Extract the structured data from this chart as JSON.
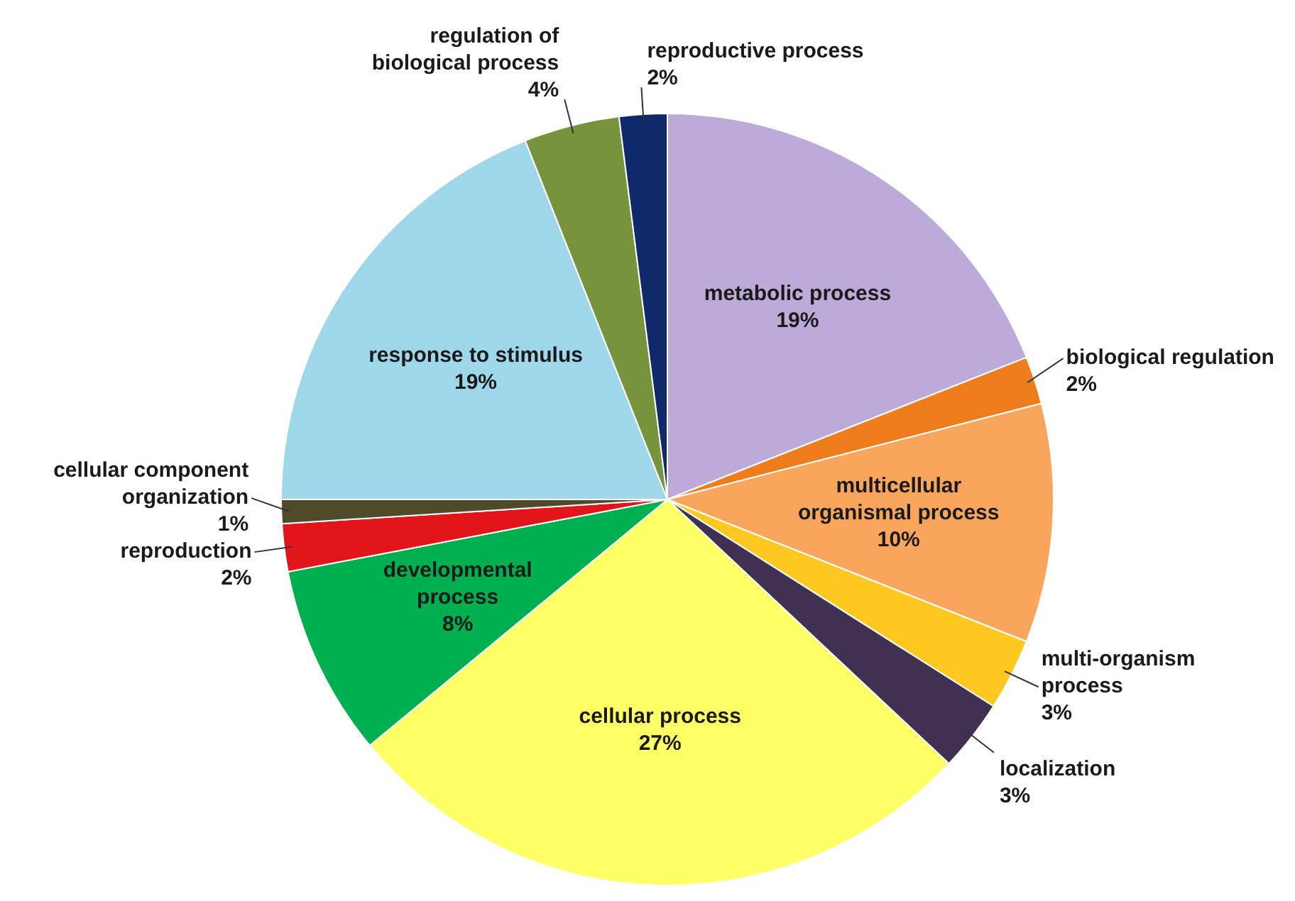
{
  "chart_data": {
    "type": "pie",
    "categories": [
      "metabolic process",
      "biological regulation",
      "multicellular organismal process",
      "multi-organism process",
      "localization",
      "cellular process",
      "developmental process",
      "reproduction",
      "cellular component organization",
      "response to stimulus",
      "regulation of biological process",
      "reproductive process"
    ],
    "values": [
      19,
      2,
      10,
      3,
      3,
      27,
      8,
      2,
      1,
      19,
      4,
      2
    ],
    "value_labels": [
      "19%",
      "2%",
      "10%",
      "3%",
      "3%",
      "27%",
      "8%",
      "2%",
      "1%",
      "19%",
      "4%",
      "2%"
    ],
    "colors": [
      "#bcaad8",
      "#ef7d1c",
      "#f9a55b",
      "#ffc820",
      "#403152",
      "#ffff66",
      "#00b050",
      "#e2151b",
      "#4f4a2a",
      "#9fd7ea",
      "#77933c",
      "#10296b"
    ]
  }
}
